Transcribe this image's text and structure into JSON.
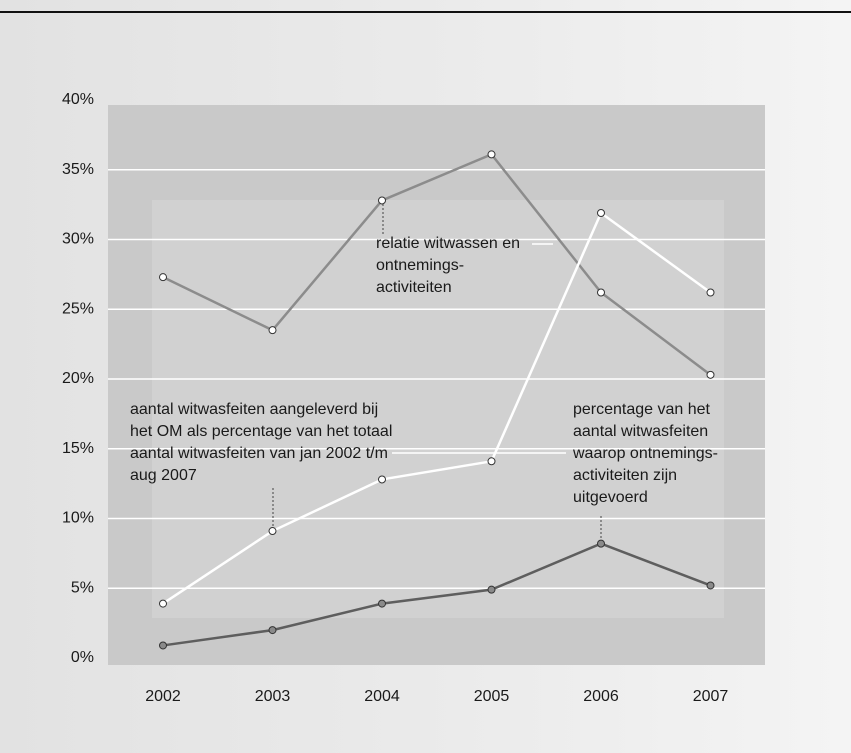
{
  "chart_data": {
    "type": "line",
    "x": [
      "2002",
      "2003",
      "2004",
      "2005",
      "2006",
      "2007"
    ],
    "ylim": [
      0,
      40
    ],
    "yticks": [
      {
        "value": 0,
        "label": "0%"
      },
      {
        "value": 5,
        "label": "5%"
      },
      {
        "value": 10,
        "label": "10%"
      },
      {
        "value": 15,
        "label": "15%"
      },
      {
        "value": 20,
        "label": "20%"
      },
      {
        "value": 25,
        "label": "25%"
      },
      {
        "value": 30,
        "label": "30%"
      },
      {
        "value": 35,
        "label": "35%"
      },
      {
        "value": 40,
        "label": "40%"
      }
    ],
    "grid": true,
    "series": [
      {
        "name": "relatie witwassen en ontnemings-activiteiten",
        "color": "#8c8c8c",
        "marker_color": "#ffffff",
        "values": [
          27.3,
          23.5,
          32.8,
          36.1,
          26.2,
          20.3
        ]
      },
      {
        "name": "aantal witwasfeiten aangeleverd bij het OM als percentage van het totaal aantal witwasfeiten van jan 2002 t/m aug 2007",
        "color": "#ffffff",
        "marker_color": "#ffffff",
        "values": [
          3.9,
          9.1,
          12.8,
          14.1,
          31.9,
          26.2
        ]
      },
      {
        "name": "percentage van het aantal witwasfeiten waarop ontnemings-activiteiten zijn uitgevoerd",
        "color": "#5e5e5e",
        "marker_color": "#8a8a8a",
        "values": [
          0.9,
          2.0,
          3.9,
          4.9,
          8.2,
          5.2
        ]
      }
    ]
  }
}
